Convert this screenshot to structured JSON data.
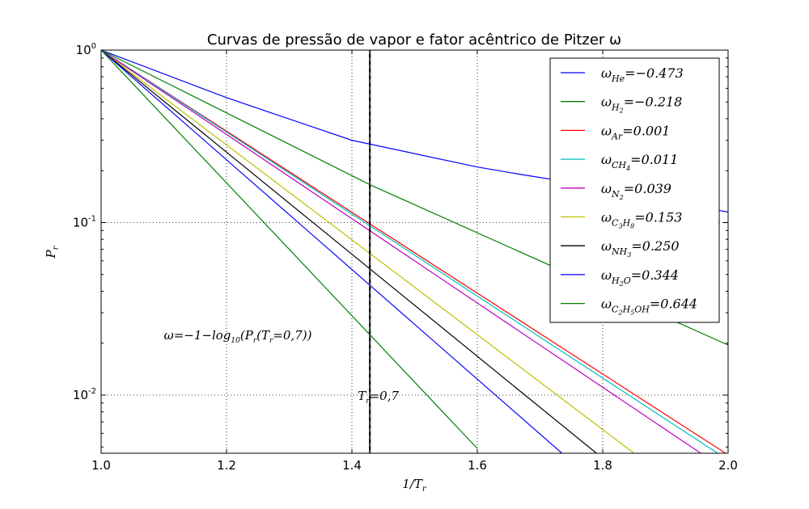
{
  "chart_data": {
    "type": "line",
    "title": "Curvas de pressão de vapor e fator acêntrico de Pitzer ω",
    "xlabel": "1/Tr",
    "ylabel": "Pr",
    "xlim": [
      1.0,
      2.0
    ],
    "ylim": [
      0.0046,
      1.0
    ],
    "yscale": "log",
    "grid": true,
    "legend_position": "top-right",
    "x_ticks": [
      {
        "value": 1.0,
        "label": "1.0"
      },
      {
        "value": 1.2,
        "label": "1.2"
      },
      {
        "value": 1.4,
        "label": "1.4"
      },
      {
        "value": 1.6,
        "label": "1.6"
      },
      {
        "value": 1.8,
        "label": "1.8"
      },
      {
        "value": 2.0,
        "label": "2.0"
      }
    ],
    "y_ticks": [
      {
        "value": 1.0,
        "base": "10",
        "exp": "0"
      },
      {
        "value": 0.1,
        "base": "10",
        "exp": "-1"
      },
      {
        "value": 0.01,
        "base": "10",
        "exp": "-2"
      }
    ],
    "series": [
      {
        "name": "ωHe = −0.473",
        "label_sym": "ω",
        "label_sub": "He",
        "label_val": "=−0.473",
        "color": "#0000ff",
        "x": [
          1.0,
          1.2,
          1.4,
          1.6,
          1.67,
          1.8,
          1.9,
          2.0
        ],
        "y": [
          1.0,
          0.53,
          0.3,
          0.21,
          0.19,
          0.16,
          0.135,
          0.115
        ]
      },
      {
        "name": "ωH2 = −0.218",
        "label_sym": "ω",
        "label_sub": "H2",
        "label_val": "=−0.218",
        "color": "#008000",
        "x": [
          1.0,
          1.43,
          2.0
        ],
        "y": [
          1.0,
          0.165,
          0.0195
        ]
      },
      {
        "name": "ωAr = 0.001",
        "label_sym": "ω",
        "label_sub": "Ar",
        "label_val": "=0.001",
        "color": "#ff0000",
        "x": [
          1.0,
          1.4,
          2.0
        ],
        "y": [
          1.0,
          0.1148,
          0.0045
        ]
      },
      {
        "name": "ωCH4 = 0.011",
        "label_sym": "ω",
        "label_sub": "CH4",
        "label_val": "=0.011",
        "color": "#00bfbf",
        "x": [
          1.0,
          2.0
        ],
        "y": [
          1.0,
          0.0042
        ]
      },
      {
        "name": "ωN2 = 0.039",
        "label_sym": "ω",
        "label_sub": "N2",
        "label_val": "=0.039",
        "color": "#bf00bf",
        "x": [
          1.0,
          2.0
        ],
        "y": [
          1.0,
          0.0036
        ]
      },
      {
        "name": "ωC3H8 = 0.153",
        "label_sym": "ω",
        "label_sub": "C3H8",
        "label_val": "=0.153",
        "color": "#bfbf00",
        "x": [
          1.0,
          1.85
        ],
        "y": [
          1.0,
          0.0046
        ]
      },
      {
        "name": "ωNH3 = 0.250",
        "label_sym": "ω",
        "label_sub": "NH3",
        "label_val": "=0.250",
        "color": "#000000",
        "x": [
          1.0,
          1.79
        ],
        "y": [
          1.0,
          0.0046
        ]
      },
      {
        "name": "ωH2O = 0.344",
        "label_sym": "ω",
        "label_sub": "H2O",
        "label_val": "=0.344",
        "color": "#0000ff",
        "x": [
          1.0,
          1.735
        ],
        "y": [
          1.0,
          0.0046
        ]
      },
      {
        "name": "ωC2H5OH = 0.644",
        "label_sym": "ω",
        "label_sub": "C2H5OH",
        "label_val": "=0.644",
        "color": "#008000",
        "x": [
          1.0,
          1.6
        ],
        "y": [
          1.0,
          0.0049
        ]
      }
    ],
    "vertical_line": {
      "x": 1.4286,
      "color": "#000000"
    },
    "annotations": [
      {
        "id": "omega-definition",
        "text": "ω=−1−log10(Pr(Tr=0,7))",
        "x": 1.1,
        "y": 0.021
      },
      {
        "id": "tr-label",
        "text": "Tr=0,7",
        "x": 1.35,
        "y": 0.0098
      }
    ]
  }
}
